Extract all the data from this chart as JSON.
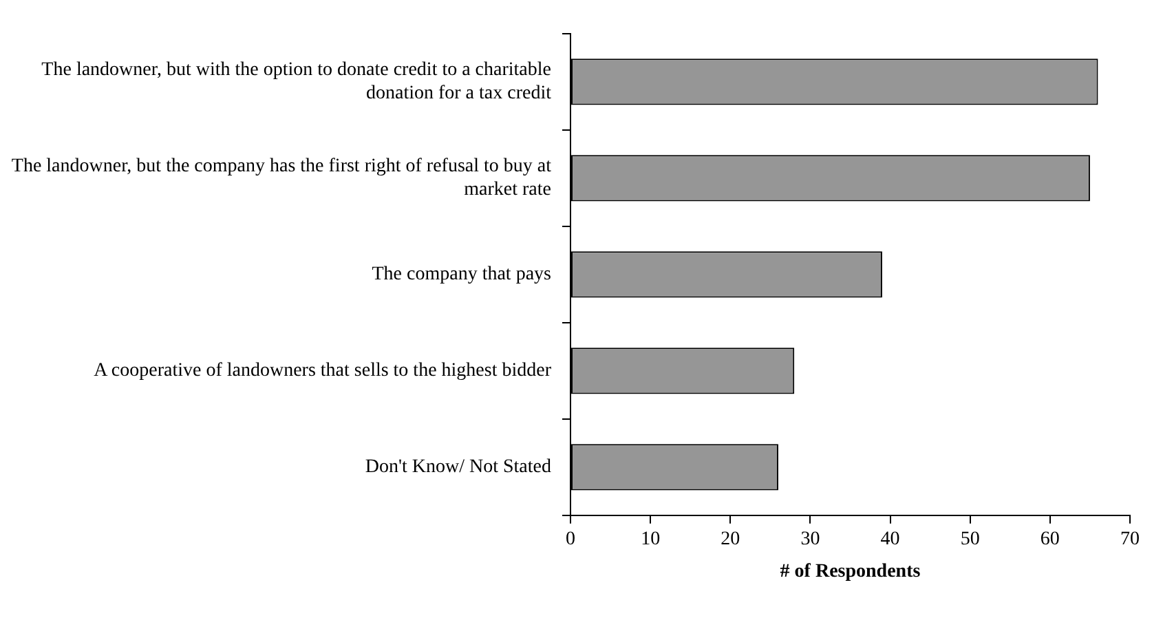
{
  "chart_data": {
    "type": "bar",
    "orientation": "horizontal",
    "xlabel": "# of Respondents",
    "categories": [
      "The landowner, but with the option to donate credit to a charitable donation for a tax credit",
      "The landowner, but the company has the first right of refusal to buy at market rate",
      "The company that pays",
      "A cooperative of landowners that sells to the highest bidder",
      "Don't Know/ Not Stated"
    ],
    "values": [
      66,
      65,
      39,
      28,
      26
    ],
    "color": "#969696",
    "xlim": [
      0,
      70
    ],
    "xticks": [
      0,
      10,
      20,
      30,
      40,
      50,
      60,
      70
    ],
    "grid": false,
    "legend": false
  }
}
